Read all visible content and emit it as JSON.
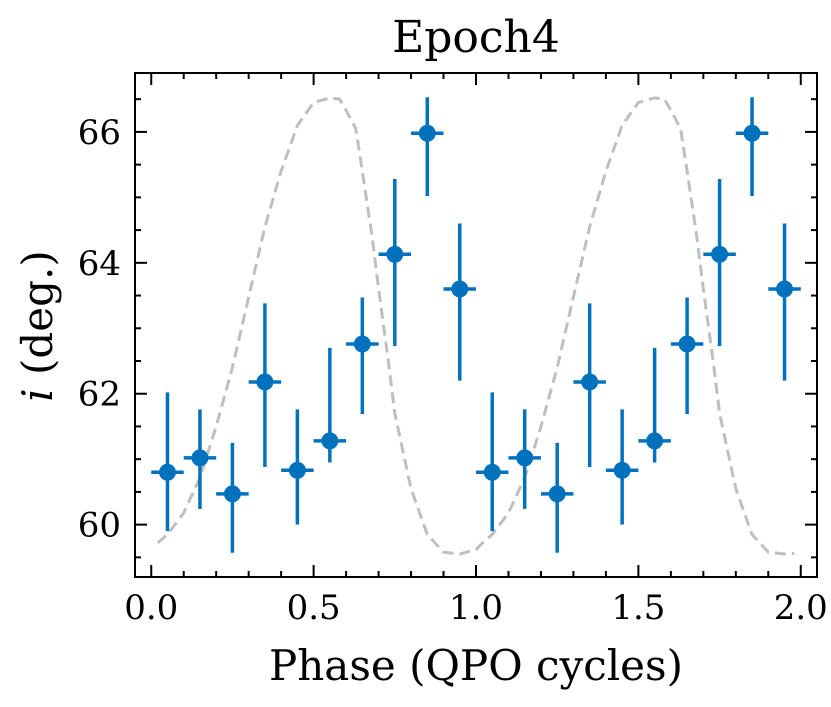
{
  "chart_data": {
    "type": "scatter",
    "title": "Epoch4",
    "xlabel": "Phase (QPO cycles)",
    "ylabel_symbol": "i",
    "ylabel_rest": " (deg.)",
    "xlim": [
      -0.05,
      2.05
    ],
    "ylim": [
      59.2,
      66.9
    ],
    "xticks": [
      0.0,
      0.5,
      1.0,
      1.5,
      2.0
    ],
    "xtick_labels": [
      "0.0",
      "0.5",
      "1.0",
      "1.5",
      "2.0"
    ],
    "yticks": [
      60,
      62,
      64,
      66
    ],
    "ytick_labels": [
      "60",
      "62",
      "64",
      "66"
    ],
    "x_minor_step": 0.1,
    "y_minor_step": 0.5,
    "colors": {
      "points": "#0072bd",
      "model": "#bfbfbf",
      "axes": "#000000"
    },
    "series": [
      {
        "name": "data",
        "style": "errorbar",
        "x": [
          0.05,
          0.15,
          0.25,
          0.35,
          0.45,
          0.55,
          0.65,
          0.75,
          0.85,
          0.95,
          1.05,
          1.15,
          1.25,
          1.35,
          1.45,
          1.55,
          1.65,
          1.75,
          1.85,
          1.95
        ],
        "y": [
          60.8,
          61.02,
          60.47,
          62.18,
          60.83,
          61.28,
          62.76,
          64.13,
          65.98,
          63.6,
          60.8,
          61.02,
          60.47,
          62.18,
          60.83,
          61.28,
          62.76,
          64.13,
          65.98,
          63.6
        ],
        "xerr": 0.05,
        "yerr_low": [
          0.9,
          0.78,
          0.9,
          1.3,
          0.83,
          0.33,
          1.07,
          1.4,
          0.96,
          1.4,
          0.9,
          0.78,
          0.9,
          1.3,
          0.83,
          0.33,
          1.07,
          1.4,
          0.96,
          1.4
        ],
        "yerr_high": [
          1.22,
          0.74,
          0.78,
          1.2,
          0.93,
          1.42,
          0.71,
          1.15,
          0.55,
          1.0,
          1.22,
          0.74,
          0.78,
          1.2,
          0.93,
          1.42,
          0.71,
          1.15,
          0.55,
          1.0
        ]
      },
      {
        "name": "model",
        "style": "dashed-line",
        "x": [
          0.02,
          0.05,
          0.1,
          0.15,
          0.2,
          0.25,
          0.3,
          0.35,
          0.4,
          0.45,
          0.5,
          0.55,
          0.58,
          0.6,
          0.63,
          0.65,
          0.68,
          0.7,
          0.73,
          0.75,
          0.8,
          0.85,
          0.9,
          0.95,
          1.0,
          1.02,
          1.05,
          1.1,
          1.15,
          1.2,
          1.25,
          1.3,
          1.35,
          1.4,
          1.45,
          1.5,
          1.55,
          1.58,
          1.6,
          1.63,
          1.65,
          1.68,
          1.7,
          1.73,
          1.75,
          1.8,
          1.85,
          1.9,
          1.95,
          1.98
        ],
        "y": [
          59.72,
          59.85,
          60.18,
          60.72,
          61.5,
          62.4,
          63.48,
          64.55,
          65.4,
          66.1,
          66.45,
          66.52,
          66.5,
          66.33,
          66.05,
          65.4,
          64.4,
          63.6,
          62.5,
          61.7,
          60.55,
          59.85,
          59.58,
          59.55,
          59.62,
          59.72,
          59.85,
          60.18,
          60.72,
          61.5,
          62.4,
          63.48,
          64.55,
          65.4,
          66.1,
          66.45,
          66.52,
          66.5,
          66.33,
          66.05,
          65.4,
          64.4,
          63.6,
          62.5,
          61.7,
          60.55,
          59.85,
          59.58,
          59.55,
          59.56
        ]
      }
    ]
  }
}
